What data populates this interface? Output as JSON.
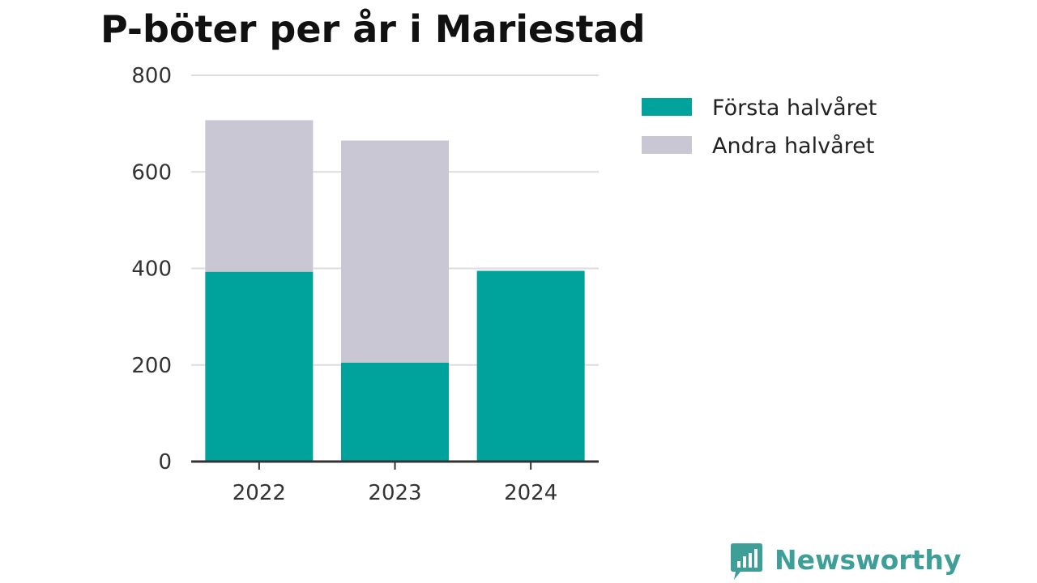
{
  "colors": {
    "first_half": "#00a39b",
    "second_half": "#c8c7d3",
    "grid": "#dddddd",
    "axis": "#333333",
    "logo": "#3e9e98"
  },
  "brand": {
    "name": "Newsworthy",
    "icon": "bar-chart-speech-bubble-icon"
  },
  "chart_data": {
    "type": "bar",
    "stacked": true,
    "title": "P-böter per år i Mariestad",
    "xlabel": "",
    "ylabel": "",
    "categories": [
      "2022",
      "2023",
      "2024"
    ],
    "series": [
      {
        "name": "Första halvåret",
        "values": [
          393,
          205,
          395
        ]
      },
      {
        "name": "Andra halvåret",
        "values": [
          314,
          460,
          0
        ]
      }
    ],
    "ylim": [
      0,
      800
    ],
    "yticks": [
      0,
      200,
      400,
      600,
      800
    ],
    "grid": true,
    "legend_position": "top-right"
  }
}
